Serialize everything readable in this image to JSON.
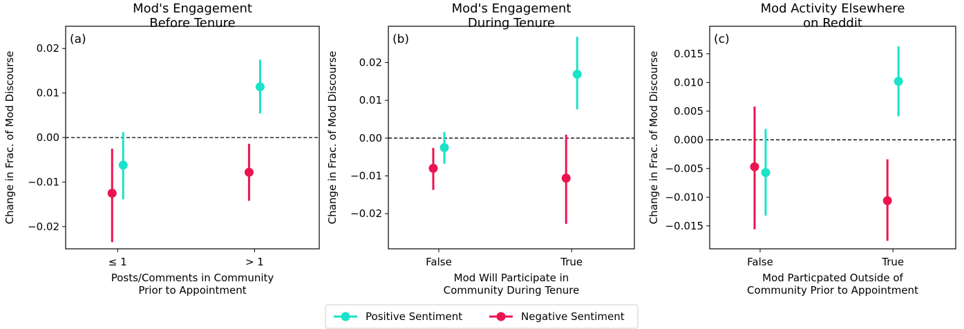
{
  "colors": {
    "positive": "#19e3c9",
    "negative": "#ec1450"
  },
  "legend": {
    "placement": "bottom-center",
    "entries": [
      {
        "name": "Positive Sentiment",
        "color": "#19e3c9"
      },
      {
        "name": "Negative Sentiment",
        "color": "#ec1450"
      }
    ]
  },
  "chart_data": [
    {
      "type": "scatter",
      "panel_label": "(a)",
      "title": [
        "Mod's Engagement",
        "Before Tenure"
      ],
      "ylabel": "Change in Frac. of Mod Discourse",
      "xlabel": [
        "Posts/Comments in Community",
        "Prior to Appointment"
      ],
      "categories": [
        "≤ 1",
        "> 1"
      ],
      "ylim": [
        -0.025,
        0.025
      ],
      "yticks": [
        -0.02,
        -0.01,
        0.0,
        0.01,
        0.02
      ],
      "ytick_labels": [
        "−0.02",
        "−0.01",
        "0.00",
        "0.01",
        "0.02"
      ],
      "reference_line": 0,
      "series": [
        {
          "name": "Positive Sentiment",
          "values": [
            -0.0062,
            0.0114
          ],
          "lower": [
            -0.0139,
            0.0054
          ],
          "upper": [
            0.0012,
            0.0175
          ]
        },
        {
          "name": "Negative Sentiment",
          "values": [
            -0.0125,
            -0.0078
          ],
          "lower": [
            -0.0235,
            -0.0142
          ],
          "upper": [
            -0.0025,
            -0.0014
          ]
        }
      ]
    },
    {
      "type": "scatter",
      "panel_label": "(b)",
      "title": [
        "Mod's Engagement",
        "During Tenure"
      ],
      "ylabel": "Change in Frac. of Mod Discourse",
      "xlabel": [
        "Mod Will Participate in",
        "Community During Tenure"
      ],
      "categories": [
        "False",
        "True"
      ],
      "ylim": [
        -0.0293,
        0.0296
      ],
      "yticks": [
        -0.02,
        -0.01,
        0.0,
        0.01,
        0.02
      ],
      "ytick_labels": [
        "−0.02",
        "−0.01",
        "0.00",
        "0.01",
        "0.02"
      ],
      "reference_line": 0,
      "series": [
        {
          "name": "Positive Sentiment",
          "values": [
            -0.0025,
            0.0169
          ],
          "lower": [
            -0.0068,
            0.0076
          ],
          "upper": [
            0.0016,
            0.0268
          ]
        },
        {
          "name": "Negative Sentiment",
          "values": [
            -0.008,
            -0.0106
          ],
          "lower": [
            -0.0137,
            -0.0227
          ],
          "upper": [
            -0.0026,
            0.0009
          ]
        }
      ]
    },
    {
      "type": "scatter",
      "panel_label": "(c)",
      "title": [
        "Mod Activity Elsewhere",
        "on Reddit"
      ],
      "ylabel": "Change in Frac. of Mod Discourse",
      "xlabel": [
        "Mod Particpated Outside of",
        "Community Prior to Appointment"
      ],
      "categories": [
        "False",
        "True"
      ],
      "ylim": [
        -0.019,
        0.0198
      ],
      "yticks": [
        -0.015,
        -0.01,
        -0.005,
        0.0,
        0.005,
        0.01,
        0.015
      ],
      "ytick_labels": [
        "−0.015",
        "−0.010",
        "−0.005",
        "0.000",
        "0.005",
        "0.010",
        "0.015"
      ],
      "reference_line": 0,
      "series": [
        {
          "name": "Positive Sentiment",
          "values": [
            -0.0057,
            0.0102
          ],
          "lower": [
            -0.0132,
            0.0041
          ],
          "upper": [
            0.0019,
            0.0163
          ]
        },
        {
          "name": "Negative Sentiment",
          "values": [
            -0.0047,
            -0.0106
          ],
          "lower": [
            -0.0156,
            -0.0176
          ],
          "upper": [
            0.0058,
            -0.0034
          ]
        }
      ]
    }
  ]
}
